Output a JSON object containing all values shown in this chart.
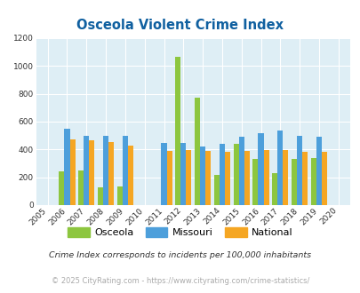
{
  "title": "Osceola Violent Crime Index",
  "title_color": "#1060a0",
  "years": [
    2005,
    2006,
    2007,
    2008,
    2009,
    2010,
    2011,
    2012,
    2013,
    2014,
    2015,
    2016,
    2017,
    2018,
    2019,
    2020
  ],
  "osceola": [
    0,
    243,
    248,
    128,
    133,
    0,
    0,
    1065,
    775,
    220,
    443,
    333,
    228,
    330,
    335,
    0
  ],
  "missouri": [
    0,
    550,
    500,
    500,
    495,
    0,
    445,
    445,
    418,
    440,
    492,
    515,
    533,
    500,
    490,
    0
  ],
  "national": [
    0,
    470,
    465,
    453,
    430,
    0,
    390,
    393,
    390,
    381,
    388,
    395,
    398,
    382,
    380,
    0
  ],
  "osceola_color": "#8dc63f",
  "missouri_color": "#4d9fdb",
  "national_color": "#f5a623",
  "bg_color": "#deeef5",
  "ylim": [
    0,
    1200
  ],
  "yticks": [
    0,
    200,
    400,
    600,
    800,
    1000,
    1200
  ],
  "footnote": "Crime Index corresponds to incidents per 100,000 inhabitants",
  "footnote2": "© 2025 CityRating.com - https://www.cityrating.com/crime-statistics/",
  "footnote_color": "#333333",
  "footnote2_color": "#aaaaaa"
}
